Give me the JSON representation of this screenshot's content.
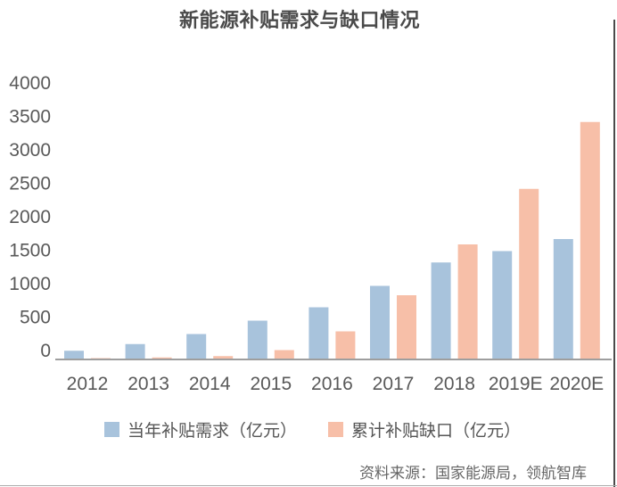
{
  "page": {
    "title": "新能源补贴需求与缺口情况",
    "source": "资料来源：国家能源局，领航智库"
  },
  "chart_data": {
    "type": "bar",
    "title": "新能源补贴需求与缺口情况",
    "categories": [
      "2012",
      "2013",
      "2014",
      "2015",
      "2016",
      "2017",
      "2018",
      "2019E",
      "2020E"
    ],
    "series": [
      {
        "name": "当年补贴需求（亿元）",
        "color": "#a8c3dc",
        "values": [
          130,
          230,
          380,
          580,
          780,
          1100,
          1450,
          1620,
          1800
        ]
      },
      {
        "name": "累计补贴缺口（亿元）",
        "color": "#f7bfa8",
        "values": [
          20,
          30,
          50,
          140,
          420,
          960,
          1720,
          2550,
          3550
        ]
      }
    ],
    "xlabel": "",
    "ylabel": "",
    "ylim": [
      0,
      4000
    ],
    "ytick_step": 500,
    "yticks": [
      0,
      500,
      1000,
      1500,
      2000,
      2500,
      3000,
      3500,
      4000
    ],
    "grid": false,
    "legend_position": "bottom",
    "axis_color": "#9e9e9e",
    "label_color": "#595959"
  }
}
